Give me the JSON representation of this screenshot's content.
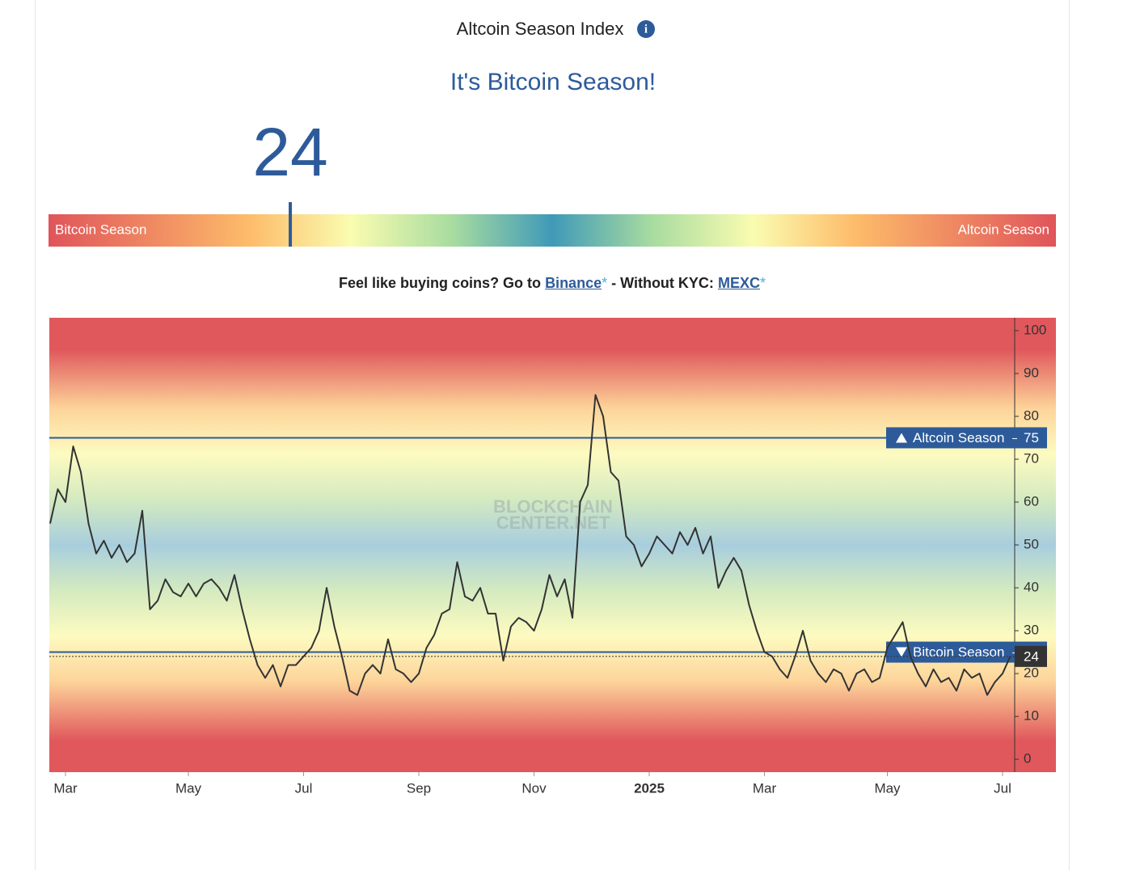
{
  "header": {
    "title": "Altcoin Season Index",
    "headline": "It's Bitcoin Season!"
  },
  "gauge": {
    "value": 24,
    "min": 0,
    "max": 100,
    "left_label": "Bitcoin Season",
    "right_label": "Altcoin Season"
  },
  "promo": {
    "lead": "Feel like buying coins? Go to",
    "link1": "Binance",
    "mark1": "*",
    "middle": "- Without KYC:",
    "link2": "MEXC",
    "mark2": "*"
  },
  "chart_data": {
    "type": "line",
    "watermark": [
      "BLOCKCHAIN",
      "CENTER.NET"
    ],
    "categories": [
      null,
      null,
      "Mar",
      null,
      null,
      null,
      null,
      null,
      null,
      null,
      null,
      null,
      null,
      null,
      null,
      null,
      null,
      null,
      "May",
      null,
      null,
      null,
      null,
      null,
      null,
      null,
      null,
      null,
      null,
      null,
      null,
      null,
      null,
      "Jul",
      null,
      null,
      null,
      null,
      null,
      null,
      null,
      null,
      null,
      null,
      null,
      null,
      null,
      null,
      "Sep",
      null,
      null,
      null,
      null,
      null,
      null,
      null,
      null,
      null,
      null,
      null,
      null,
      null,
      null,
      "Nov",
      null,
      null,
      null,
      null,
      null,
      null,
      null,
      null,
      null,
      null,
      null,
      null,
      null,
      null,
      "2025",
      null,
      null,
      null,
      null,
      null,
      null,
      null,
      null,
      null,
      null,
      null,
      null,
      null,
      null,
      "Mar",
      null,
      null,
      null,
      null,
      null,
      null,
      null,
      null,
      null,
      null,
      null,
      null,
      null,
      null,
      null,
      "May",
      null,
      null,
      null,
      null,
      null,
      null,
      null,
      null,
      null,
      null,
      null,
      null,
      null,
      null,
      "Jul",
      null
    ],
    "values": [
      55,
      63,
      60,
      73,
      67,
      55,
      48,
      51,
      47,
      50,
      46,
      48,
      58,
      35,
      37,
      42,
      39,
      38,
      41,
      38,
      41,
      42,
      40,
      37,
      43,
      35,
      28,
      22,
      19,
      22,
      17,
      22,
      22,
      24,
      26,
      30,
      40,
      31,
      24,
      16,
      15,
      20,
      22,
      20,
      28,
      21,
      20,
      18,
      20,
      26,
      29,
      34,
      35,
      46,
      38,
      37,
      40,
      34,
      34,
      23,
      31,
      33,
      32,
      30,
      35,
      43,
      38,
      42,
      33,
      60,
      64,
      85,
      80,
      67,
      65,
      52,
      50,
      45,
      48,
      52,
      50,
      48,
      53,
      50,
      54,
      48,
      52,
      40,
      44,
      47,
      44,
      36,
      30,
      25,
      24,
      21,
      19,
      24,
      30,
      23,
      20,
      18,
      21,
      20,
      16,
      20,
      21,
      18,
      19,
      26,
      29,
      32,
      24,
      20,
      17,
      21,
      18,
      19,
      16,
      21,
      19,
      20,
      15,
      18,
      20,
      24
    ],
    "color": "#333333",
    "ylim": [
      -3,
      103
    ],
    "yticks": [
      0,
      10,
      20,
      30,
      40,
      50,
      60,
      70,
      80,
      90,
      100
    ],
    "thresholds": [
      {
        "label": "Altcoin Season",
        "value": 75
      },
      {
        "label": "Bitcoin Season",
        "value": 25
      }
    ],
    "current": 24
  }
}
